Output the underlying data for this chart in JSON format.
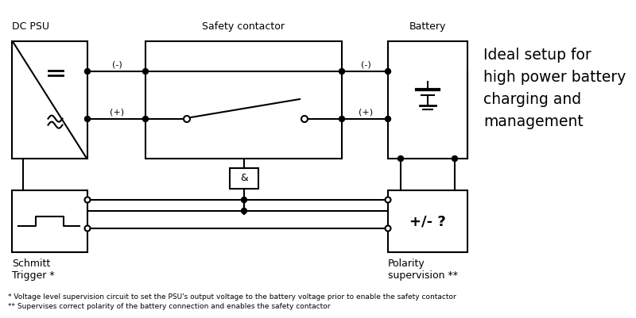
{
  "bg_color": "#ffffff",
  "line_color": "#000000",
  "title_text": "Ideal setup for\nhigh power battery\ncharging and\nmanagement",
  "label_dc_psu": "DC PSU",
  "label_safety": "Safety contactor",
  "label_battery": "Battery",
  "label_schmitt": "Schmitt\nTrigger *",
  "label_polarity": "Polarity\nsupervision **",
  "label_minus1": "(-)",
  "label_plus1": "(+)",
  "label_minus2": "(-)",
  "label_plus2": "(+)",
  "footnote1": "* Voltage level supervision circuit to set the PSU's output voltage to the battery voltage prior to enable the safety contactor",
  "footnote2": "** Supervises correct polarity of the battery connection and enables the safety contactor"
}
